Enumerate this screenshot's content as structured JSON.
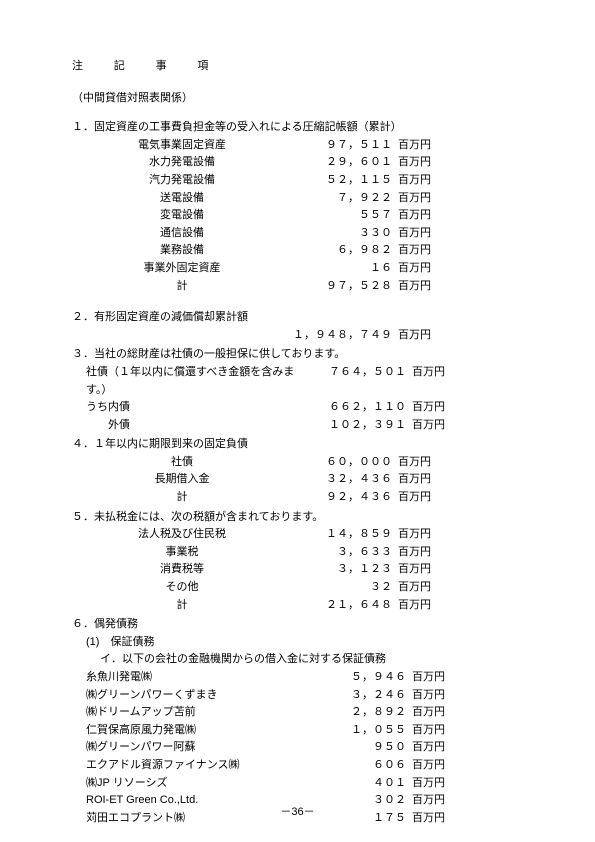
{
  "title": "注　記　事　項",
  "subtitle": "（中間貸借対照表関係）",
  "unit": "百万円",
  "s1": {
    "head": "１．固定資産の工事費負担金等の受入れによる圧縮記帳額（累計）",
    "rows": [
      {
        "l": "電気事業固定資産",
        "n": "９７，５１１"
      },
      {
        "l": "水力発電設備",
        "n": "２９，６０１"
      },
      {
        "l": "汽力発電設備",
        "n": "５２，１１５"
      },
      {
        "l": "送電設備",
        "n": "７，９２２"
      },
      {
        "l": "変電設備",
        "n": "５５７"
      },
      {
        "l": "通信設備",
        "n": "３３０"
      },
      {
        "l": "業務設備",
        "n": "６，９８２"
      },
      {
        "l": "事業外固定資産",
        "n": "１６"
      },
      {
        "l": "計",
        "n": "９７，５２８"
      }
    ]
  },
  "s2": {
    "head": "２．有形固定資産の減価償却累計額",
    "val": "１，９４８，７４９"
  },
  "s3": {
    "head": "３．当社の総財産は社債の一般担保に供しております。",
    "rows": [
      {
        "l": "社債（１年以内に償還すべき金額を含みます。）",
        "n": "７６４，５０１"
      },
      {
        "l": "うち内債",
        "n": "６６２，１１０"
      },
      {
        "l": "　　外債",
        "n": "１０２，３９１"
      }
    ]
  },
  "s4": {
    "head": "４．１年以内に期限到来の固定負債",
    "rows": [
      {
        "l": "社債",
        "n": "６０，０００"
      },
      {
        "l": "長期借入金",
        "n": "３２，４３６"
      },
      {
        "l": "計",
        "n": "９２，４３６"
      }
    ]
  },
  "s5": {
    "head": "５．未払税金には、次の税額が含まれております。",
    "rows": [
      {
        "l": "法人税及び住民税",
        "n": "１４，８５９"
      },
      {
        "l": "事業税",
        "n": "３，６３３"
      },
      {
        "l": "消費税等",
        "n": "３，１２３"
      },
      {
        "l": "その他",
        "n": "３２"
      },
      {
        "l": "計",
        "n": "２１，６４８"
      }
    ]
  },
  "s6": {
    "head": "６．偶発債務",
    "sub1": "(1)　保証債務",
    "sub2": "イ．以下の会社の金融機関からの借入金に対する保証債務",
    "rows": [
      {
        "l": "糸魚川発電㈱",
        "n": "５，９４６"
      },
      {
        "l": "㈱グリーンパワーくずまき",
        "n": "３，２４６"
      },
      {
        "l": "㈱ドリームアップ苫前",
        "n": "２，８９２"
      },
      {
        "l": "仁賀保高原風力発電㈱",
        "n": "１，０５５"
      },
      {
        "l": "㈱グリーンパワー阿蘇",
        "n": "９５０"
      },
      {
        "l": "エクアドル資源ファイナンス㈱",
        "n": "６０６"
      },
      {
        "l": "㈱JP リソーシズ",
        "n": "４０１"
      },
      {
        "l": "ROI-ET Green Co.,Ltd.",
        "n": "３０２"
      },
      {
        "l": "苅田エコプラント㈱",
        "n": "１７５"
      }
    ]
  },
  "pagenum": "－36－"
}
